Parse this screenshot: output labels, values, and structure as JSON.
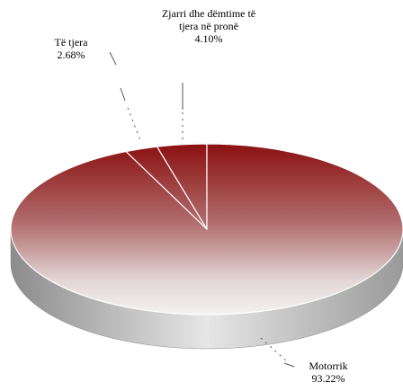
{
  "chart_data": {
    "type": "pie",
    "categories": [
      "Zjarri dhe dëmtime të tjera në pronë",
      "Të tjera",
      "Motorrik"
    ],
    "values": [
      4.1,
      2.68,
      93.22
    ],
    "value_labels": [
      "4.10%",
      "2.68%",
      "93.22%"
    ],
    "color": "#8b1010"
  }
}
